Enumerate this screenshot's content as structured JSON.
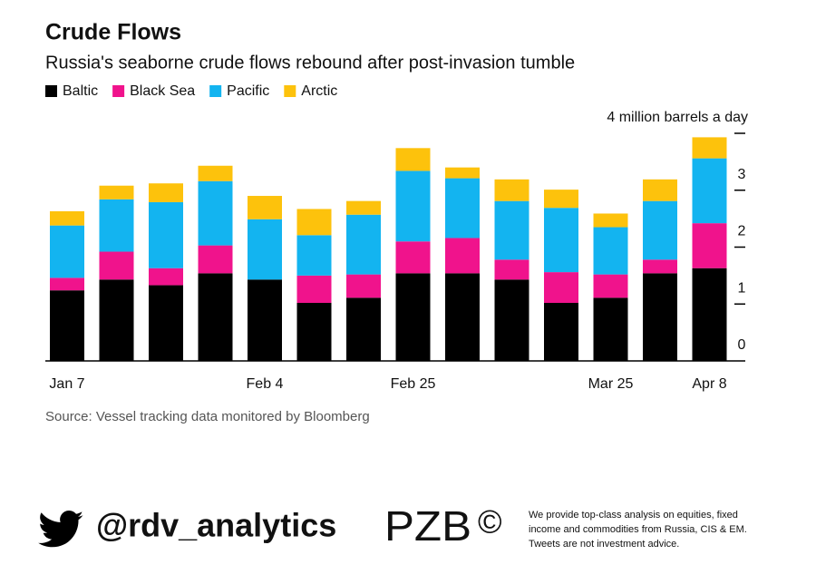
{
  "chart_data": {
    "type": "bar",
    "title": "Crude Flows",
    "subtitle": "Russia's seaborne crude flows rebound after post-invasion tumble",
    "stacked": true,
    "categories": [
      "Jan 7",
      null,
      null,
      null,
      "Feb 4",
      null,
      null,
      "Feb 25",
      null,
      null,
      null,
      "Mar 25",
      null,
      "Apr 8"
    ],
    "series": [
      {
        "name": "Baltic",
        "color": "#000000",
        "values": [
          1.24,
          1.43,
          1.33,
          1.54,
          1.43,
          1.02,
          1.11,
          1.54,
          1.54,
          1.43,
          1.02,
          1.11,
          1.54,
          1.63
        ]
      },
      {
        "name": "Black Sea",
        "color": "#f0138c",
        "values": [
          0.22,
          0.49,
          0.3,
          0.49,
          0,
          0.48,
          0.41,
          0.56,
          0.62,
          0.35,
          0.54,
          0.41,
          0.24,
          0.79
        ]
      },
      {
        "name": "Pacific",
        "color": "#13b4f0",
        "values": [
          0.92,
          0.92,
          1.16,
          1.13,
          1.06,
          0.71,
          1.05,
          1.24,
          1.05,
          1.03,
          1.13,
          0.83,
          1.03,
          1.14
        ]
      },
      {
        "name": "Arctic",
        "color": "#fdc20c",
        "values": [
          0.25,
          0.24,
          0.33,
          0.27,
          0.41,
          0.46,
          0.24,
          0.4,
          0.19,
          0.38,
          0.32,
          0.24,
          0.38,
          0.37
        ]
      }
    ],
    "ylim": [
      0,
      4
    ],
    "yticks": [
      0,
      1,
      2,
      3,
      {
        "value": 4,
        "label": "4 million barrels a day"
      }
    ],
    "source": "Source: Vessel tracking data monitored by Bloomberg"
  },
  "footer": {
    "handle": "@rdv_analytics",
    "logo": "PZB",
    "copyright": "©",
    "disclaimer": [
      "We provide top-class analysis on equities, fixed",
      "income and commodities from Russia, CIS & EM.",
      "Tweets are not investment advice."
    ]
  }
}
